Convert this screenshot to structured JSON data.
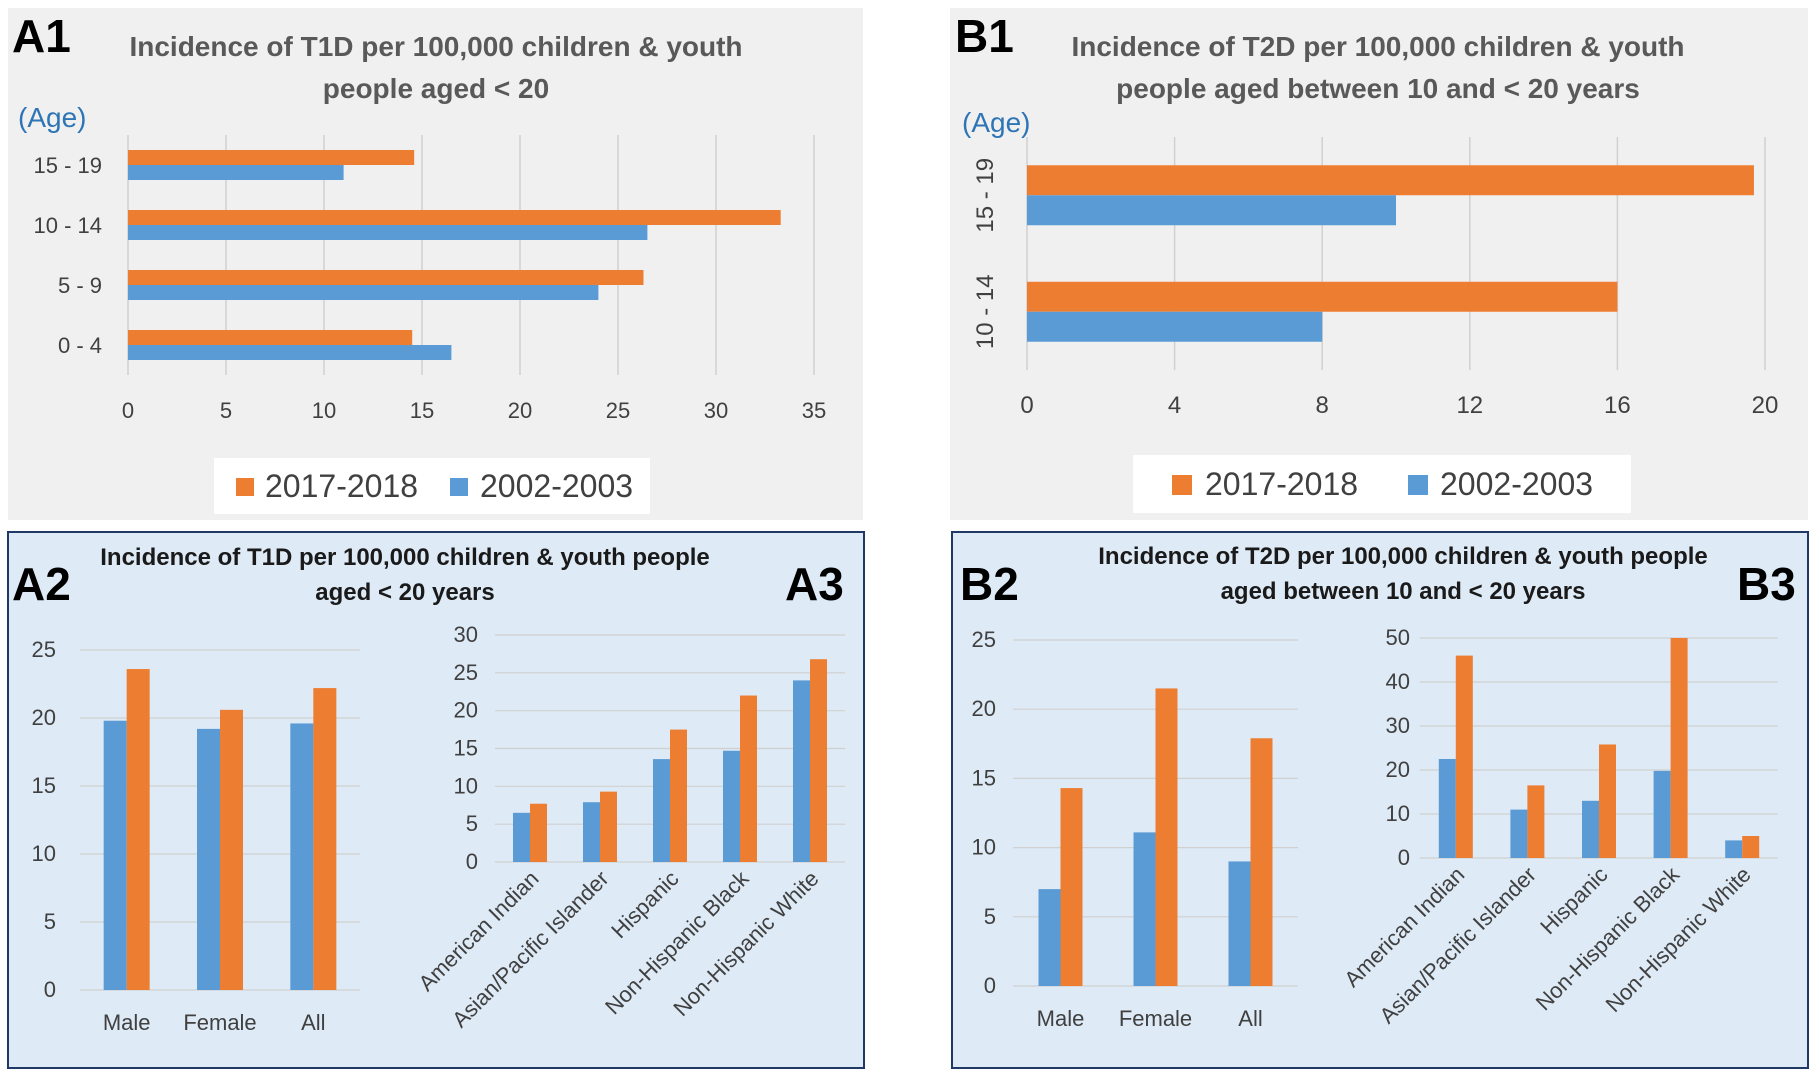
{
  "colors": {
    "orange": "#ed7d31",
    "blue": "#5b9bd5",
    "grid": "#d0d0d0",
    "panel_top_bg": "#f0f0f0",
    "panel_bottom_bg": "#deeaf6",
    "age_label": "#2e75b6"
  },
  "labels": {
    "A1": "A1",
    "A2": "A2",
    "A3": "A3",
    "B1": "B1",
    "B2": "B2",
    "B3": "B3"
  },
  "legend": {
    "series_2017": "2017-2018",
    "series_2002": "2002-2003"
  },
  "age_label": "(Age)",
  "chart_data": [
    {
      "id": "A1",
      "type": "bar",
      "orientation": "horizontal",
      "title_line1": "Incidence of T1D per 100,000 children & youth",
      "title_line2": "people aged < 20",
      "categories": [
        "0 - 4",
        "5 - 9",
        "10 - 14",
        "15 - 19"
      ],
      "series": [
        {
          "name": "2017-2018",
          "values": [
            14.5,
            26.3,
            33.3,
            14.6
          ]
        },
        {
          "name": "2002-2003",
          "values": [
            16.5,
            24.0,
            26.5,
            11.0
          ]
        }
      ],
      "xlim": [
        0,
        35
      ],
      "xticks": [
        0,
        5,
        10,
        15,
        20,
        25,
        30,
        35
      ],
      "xtick_labels": [
        "0",
        "5",
        "10",
        "15",
        "20",
        "25",
        "30",
        "35"
      ],
      "legend_position": "bottom"
    },
    {
      "id": "B1",
      "type": "bar",
      "orientation": "horizontal",
      "title_line1": "Incidence of T2D per 100,000 children & youth",
      "title_line2": "people aged between 10 and < 20 years",
      "categories": [
        "10 - 14",
        "15 - 19"
      ],
      "series": [
        {
          "name": "2017-2018",
          "values": [
            16.0,
            19.7
          ]
        },
        {
          "name": "2002-2003",
          "values": [
            8.0,
            10.0
          ]
        }
      ],
      "xlim": [
        0,
        20
      ],
      "xticks": [
        0,
        4,
        8,
        12,
        16,
        20
      ],
      "xtick_labels": [
        "0",
        "4",
        "8",
        "12",
        "16",
        "20"
      ],
      "legend_position": "bottom"
    },
    {
      "id": "A2",
      "type": "bar",
      "title_line1": "Incidence of T1D per 100,000 children & youth people",
      "title_line2": "aged < 20 years",
      "categories": [
        "Male",
        "Female",
        "All"
      ],
      "series": [
        {
          "name": "2002-2003",
          "values": [
            19.8,
            19.2,
            19.6
          ]
        },
        {
          "name": "2017-2018",
          "values": [
            23.6,
            20.6,
            22.2
          ]
        }
      ],
      "ylim": [
        0,
        25
      ],
      "yticks": [
        0,
        5,
        10,
        15,
        20,
        25
      ],
      "ytick_labels": [
        "0",
        "5",
        "10",
        "15",
        "20",
        "25"
      ]
    },
    {
      "id": "A3",
      "type": "bar",
      "categories": [
        "American Indian",
        "Asian/Pacific Islander",
        "Hispanic",
        "Non-Hispanic Black",
        "Non-Hispanic White"
      ],
      "series": [
        {
          "name": "2002-2003",
          "values": [
            6.5,
            7.9,
            13.6,
            14.7,
            24.0
          ]
        },
        {
          "name": "2017-2018",
          "values": [
            7.7,
            9.3,
            17.5,
            22.0,
            26.8
          ]
        }
      ],
      "ylim": [
        0,
        30
      ],
      "yticks": [
        0,
        5,
        10,
        15,
        20,
        25,
        30
      ],
      "ytick_labels": [
        "0",
        "5",
        "10",
        "15",
        "20",
        "25",
        "30"
      ]
    },
    {
      "id": "B2",
      "type": "bar",
      "title_line1": "Incidence of T2D per 100,000 children & youth people",
      "title_line2": "aged between 10 and < 20 years",
      "categories": [
        "Male",
        "Female",
        "All"
      ],
      "series": [
        {
          "name": "2002-2003",
          "values": [
            7.0,
            11.1,
            9.0
          ]
        },
        {
          "name": "2017-2018",
          "values": [
            14.3,
            21.5,
            17.9
          ]
        }
      ],
      "ylim": [
        0,
        25
      ],
      "yticks": [
        0,
        5,
        10,
        15,
        20,
        25
      ],
      "ytick_labels": [
        "0",
        "5",
        "10",
        "15",
        "20",
        "25"
      ]
    },
    {
      "id": "B3",
      "type": "bar",
      "categories": [
        "American Indian",
        "Asian/Pacific Islander",
        "Hispanic",
        "Non-Hispanic Black",
        "Non-Hispanic White"
      ],
      "series": [
        {
          "name": "2002-2003",
          "values": [
            22.5,
            11.0,
            13.0,
            19.8,
            4.0
          ]
        },
        {
          "name": "2017-2018",
          "values": [
            46.0,
            16.5,
            25.8,
            50.0,
            5.0
          ]
        }
      ],
      "ylim": [
        0,
        50
      ],
      "yticks": [
        0,
        10,
        20,
        30,
        40,
        50
      ],
      "ytick_labels": [
        "0",
        "10",
        "20",
        "30",
        "40",
        "50"
      ]
    }
  ]
}
